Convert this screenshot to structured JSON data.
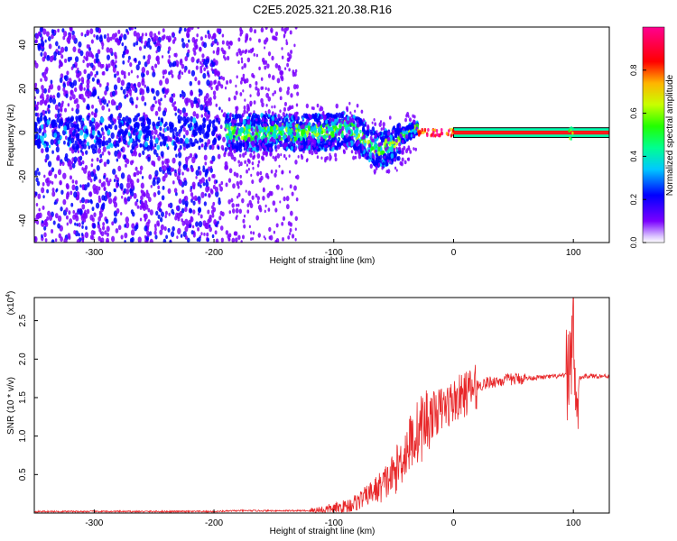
{
  "title": "C2E5.2025.321.20.38.R16",
  "colors": {
    "line": "#e8282a",
    "axis": "#000000",
    "background": "#ffffff"
  },
  "chart_data": [
    {
      "type": "heatmap",
      "xlabel": "Height of straight line (km)",
      "ylabel": "Frequency (Hz)",
      "xlim": [
        -350,
        130
      ],
      "ylim": [
        -50,
        48
      ],
      "x_ticks": [
        -300,
        -200,
        -100,
        0,
        100
      ],
      "y_ticks": [
        -40,
        -20,
        0,
        20,
        40
      ],
      "colorbar": {
        "label": "Normalized spectral amplitude",
        "range": [
          0.0,
          1.0
        ],
        "ticks": [
          0.0,
          0.2,
          0.4,
          0.6,
          0.8
        ],
        "tick_labels": [
          "0.0",
          "0.2",
          "0.4",
          "0.6",
          "0.8"
        ],
        "colormap": "rainbow (white-violet-blue-cyan-green-yellow-red-magenta)"
      },
      "regions": [
        {
          "x_range": [
            -350,
            -195
          ],
          "freq_range": [
            -50,
            48
          ],
          "amplitude": 0.1,
          "description": "broad scatter"
        },
        {
          "x_range": [
            -195,
            -130
          ],
          "freq_range": [
            -50,
            48
          ],
          "amplitude": 0.05,
          "description": "sparse scatter"
        },
        {
          "x_range": [
            -190,
            -45
          ],
          "freq_range": [
            -12,
            10
          ],
          "amplitude": 0.3,
          "description": "dense band"
        },
        {
          "x_range": [
            0,
            130
          ],
          "freq_range": [
            -1,
            1
          ],
          "amplitude": 1.0,
          "description": "narrow carrier line"
        }
      ]
    },
    {
      "type": "line",
      "xlabel": "Height of straight line (km)",
      "ylabel": "SNR (10 * v/v)",
      "y_multiplier": "(x10",
      "y_multiplier_exp": "4",
      "xlim": [
        -350,
        130
      ],
      "ylim": [
        0,
        2.8
      ],
      "x_ticks": [
        -300,
        -200,
        -100,
        0,
        100
      ],
      "y_ticks": [
        0.5,
        1.0,
        1.5,
        2.0,
        2.5
      ],
      "series": [
        {
          "x": [
            -350,
            -300,
            -250,
            -200,
            -180,
            -150,
            -120,
            -100,
            -90,
            -80,
            -70,
            -60,
            -50,
            -45,
            -40,
            -35,
            -30,
            -25,
            -20,
            -15,
            -10,
            -5,
            0,
            10,
            20,
            30,
            40,
            50,
            60,
            70,
            80,
            90,
            95,
            98,
            100,
            102,
            105,
            110,
            120,
            130
          ],
          "y": [
            0.02,
            0.02,
            0.02,
            0.02,
            0.03,
            0.03,
            0.03,
            0.05,
            0.08,
            0.15,
            0.25,
            0.35,
            0.5,
            0.65,
            0.8,
            0.95,
            1.05,
            1.15,
            1.25,
            1.3,
            1.35,
            1.4,
            1.45,
            1.55,
            1.65,
            1.7,
            1.72,
            1.74,
            1.75,
            1.76,
            1.77,
            1.78,
            1.8,
            2.0,
            2.75,
            1.1,
            1.75,
            1.78,
            1.78,
            1.78
          ]
        }
      ]
    }
  ]
}
